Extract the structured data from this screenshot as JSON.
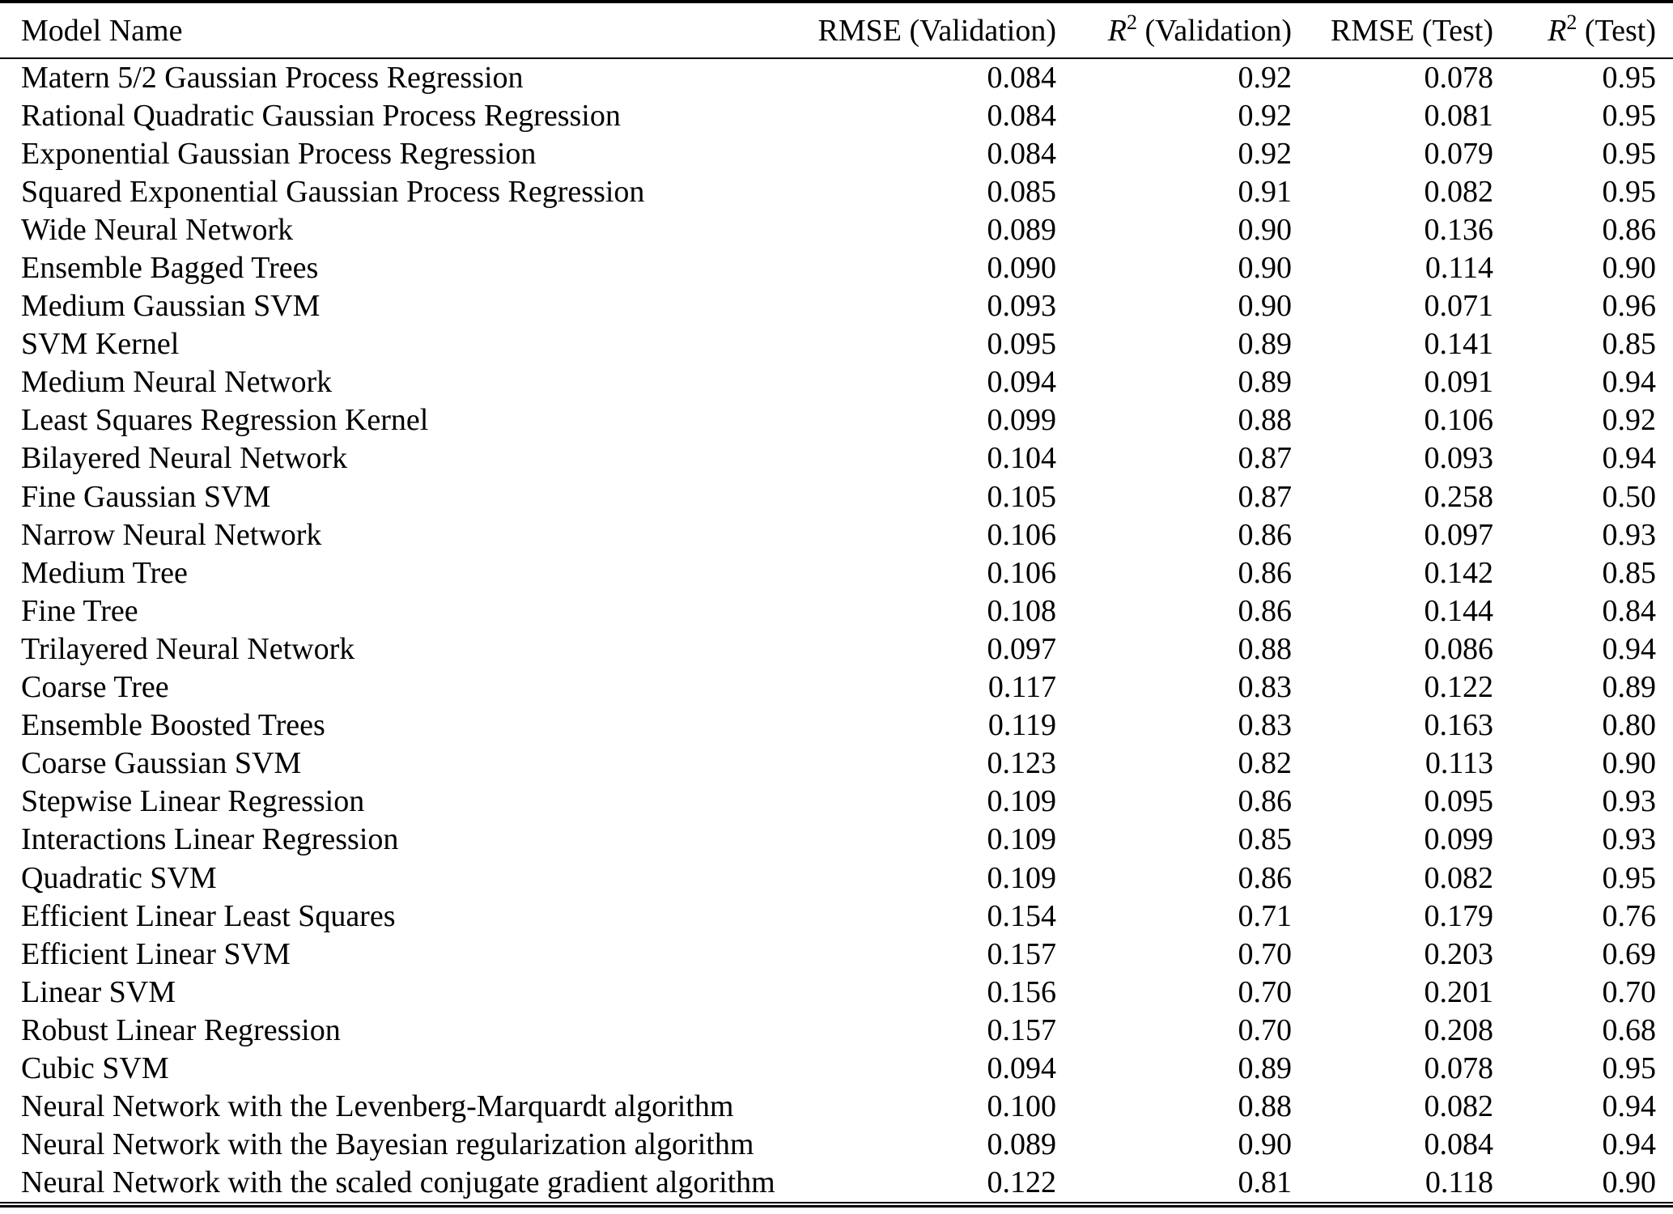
{
  "page": {
    "background_color": "#ffffff",
    "text_color": "#000000",
    "rule_color": "#000000"
  },
  "table": {
    "columns": [
      {
        "key": "name",
        "label": "Model Name"
      },
      {
        "key": "rmse_validation",
        "label": "RMSE (Validation)"
      },
      {
        "key": "r2_validation",
        "label_base": "R",
        "label_sup": "2",
        "label_suffix": " (Validation)"
      },
      {
        "key": "rmse_test",
        "label": "RMSE (Test)"
      },
      {
        "key": "r2_test",
        "label_base": "R",
        "label_sup": "2",
        "label_suffix": " (Test)"
      }
    ],
    "rows": [
      {
        "name": "Matern 5/2 Gaussian Process Regression",
        "rmse_validation": "0.084",
        "r2_validation": "0.92",
        "rmse_test": "0.078",
        "r2_test": "0.95"
      },
      {
        "name": "Rational Quadratic Gaussian Process Regression",
        "rmse_validation": "0.084",
        "r2_validation": "0.92",
        "rmse_test": "0.081",
        "r2_test": "0.95"
      },
      {
        "name": "Exponential Gaussian Process Regression",
        "rmse_validation": "0.084",
        "r2_validation": "0.92",
        "rmse_test": "0.079",
        "r2_test": "0.95"
      },
      {
        "name": "Squared Exponential Gaussian Process Regression",
        "rmse_validation": "0.085",
        "r2_validation": "0.91",
        "rmse_test": "0.082",
        "r2_test": "0.95"
      },
      {
        "name": "Wide Neural Network",
        "rmse_validation": "0.089",
        "r2_validation": "0.90",
        "rmse_test": "0.136",
        "r2_test": "0.86"
      },
      {
        "name": "Ensemble Bagged Trees",
        "rmse_validation": "0.090",
        "r2_validation": "0.90",
        "rmse_test": "0.114",
        "r2_test": "0.90"
      },
      {
        "name": "Medium Gaussian SVM",
        "rmse_validation": "0.093",
        "r2_validation": "0.90",
        "rmse_test": "0.071",
        "r2_test": "0.96"
      },
      {
        "name": "SVM Kernel",
        "rmse_validation": "0.095",
        "r2_validation": "0.89",
        "rmse_test": "0.141",
        "r2_test": "0.85"
      },
      {
        "name": "Medium Neural Network",
        "rmse_validation": "0.094",
        "r2_validation": "0.89",
        "rmse_test": "0.091",
        "r2_test": "0.94"
      },
      {
        "name": "Least Squares Regression Kernel",
        "rmse_validation": "0.099",
        "r2_validation": "0.88",
        "rmse_test": "0.106",
        "r2_test": "0.92"
      },
      {
        "name": "Bilayered Neural Network",
        "rmse_validation": "0.104",
        "r2_validation": "0.87",
        "rmse_test": "0.093",
        "r2_test": "0.94"
      },
      {
        "name": "Fine Gaussian SVM",
        "rmse_validation": "0.105",
        "r2_validation": "0.87",
        "rmse_test": "0.258",
        "r2_test": "0.50"
      },
      {
        "name": "Narrow Neural Network",
        "rmse_validation": "0.106",
        "r2_validation": "0.86",
        "rmse_test": "0.097",
        "r2_test": "0.93"
      },
      {
        "name": "Medium Tree",
        "rmse_validation": "0.106",
        "r2_validation": "0.86",
        "rmse_test": "0.142",
        "r2_test": "0.85"
      },
      {
        "name": "Fine Tree",
        "rmse_validation": "0.108",
        "r2_validation": "0.86",
        "rmse_test": "0.144",
        "r2_test": "0.84"
      },
      {
        "name": "Trilayered Neural Network",
        "rmse_validation": "0.097",
        "r2_validation": "0.88",
        "rmse_test": "0.086",
        "r2_test": "0.94"
      },
      {
        "name": "Coarse Tree",
        "rmse_validation": "0.117",
        "r2_validation": "0.83",
        "rmse_test": "0.122",
        "r2_test": "0.89"
      },
      {
        "name": "Ensemble Boosted Trees",
        "rmse_validation": "0.119",
        "r2_validation": "0.83",
        "rmse_test": "0.163",
        "r2_test": "0.80"
      },
      {
        "name": "Coarse Gaussian SVM",
        "rmse_validation": "0.123",
        "r2_validation": "0.82",
        "rmse_test": "0.113",
        "r2_test": "0.90"
      },
      {
        "name": "Stepwise Linear Regression",
        "rmse_validation": "0.109",
        "r2_validation": "0.86",
        "rmse_test": "0.095",
        "r2_test": "0.93"
      },
      {
        "name": "Interactions Linear Regression",
        "rmse_validation": "0.109",
        "r2_validation": "0.85",
        "rmse_test": "0.099",
        "r2_test": "0.93"
      },
      {
        "name": "Quadratic SVM",
        "rmse_validation": "0.109",
        "r2_validation": "0.86",
        "rmse_test": "0.082",
        "r2_test": "0.95"
      },
      {
        "name": "Efficient Linear Least Squares",
        "rmse_validation": "0.154",
        "r2_validation": "0.71",
        "rmse_test": "0.179",
        "r2_test": "0.76"
      },
      {
        "name": "Efficient Linear SVM",
        "rmse_validation": "0.157",
        "r2_validation": "0.70",
        "rmse_test": "0.203",
        "r2_test": "0.69"
      },
      {
        "name": "Linear SVM",
        "rmse_validation": "0.156",
        "r2_validation": "0.70",
        "rmse_test": "0.201",
        "r2_test": "0.70"
      },
      {
        "name": "Robust Linear Regression",
        "rmse_validation": "0.157",
        "r2_validation": "0.70",
        "rmse_test": "0.208",
        "r2_test": "0.68"
      },
      {
        "name": "Cubic SVM",
        "rmse_validation": "0.094",
        "r2_validation": "0.89",
        "rmse_test": "0.078",
        "r2_test": "0.95"
      },
      {
        "name": "Neural Network with the Levenberg-Marquardt algorithm",
        "rmse_validation": "0.100",
        "r2_validation": "0.88",
        "rmse_test": "0.082",
        "r2_test": "0.94"
      },
      {
        "name": "Neural Network with the Bayesian regularization algorithm",
        "rmse_validation": "0.089",
        "r2_validation": "0.90",
        "rmse_test": "0.084",
        "r2_test": "0.94"
      },
      {
        "name": "Neural Network with the scaled conjugate gradient algorithm",
        "rmse_validation": "0.122",
        "r2_validation": "0.81",
        "rmse_test": "0.118",
        "r2_test": "0.90"
      }
    ]
  }
}
